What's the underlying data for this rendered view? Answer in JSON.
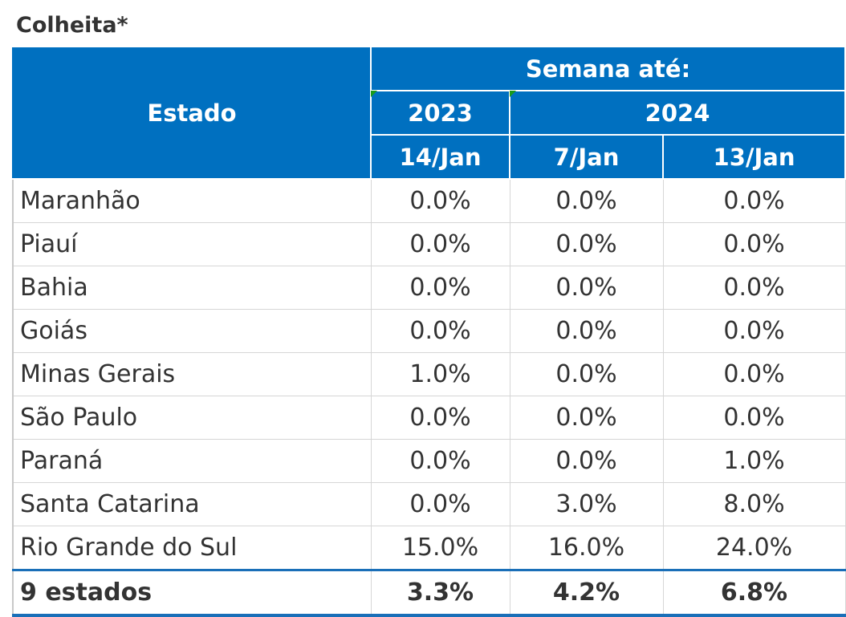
{
  "title": "Colheita*",
  "header": {
    "estado": "Estado",
    "group": "Semana até:",
    "years": [
      "2023",
      "2024"
    ],
    "dates": [
      "14/Jan",
      "7/Jan",
      "13/Jan"
    ]
  },
  "rows": [
    {
      "estado": "Maranhão",
      "values": [
        "0.0%",
        "0.0%",
        "0.0%"
      ]
    },
    {
      "estado": "Piauí",
      "values": [
        "0.0%",
        "0.0%",
        "0.0%"
      ]
    },
    {
      "estado": "Bahia",
      "values": [
        "0.0%",
        "0.0%",
        "0.0%"
      ]
    },
    {
      "estado": "Goiás",
      "values": [
        "0.0%",
        "0.0%",
        "0.0%"
      ]
    },
    {
      "estado": "Minas Gerais",
      "values": [
        "1.0%",
        "0.0%",
        "0.0%"
      ]
    },
    {
      "estado": "São Paulo",
      "values": [
        "0.0%",
        "0.0%",
        "0.0%"
      ]
    },
    {
      "estado": "Paraná",
      "values": [
        "0.0%",
        "0.0%",
        "1.0%"
      ]
    },
    {
      "estado": "Santa Catarina",
      "values": [
        "0.0%",
        "3.0%",
        "8.0%"
      ]
    },
    {
      "estado": "Rio Grande do Sul",
      "values": [
        "15.0%",
        "16.0%",
        "24.0%"
      ]
    }
  ],
  "total": {
    "estado": "9 estados",
    "values": [
      "3.3%",
      "4.2%",
      "6.8%"
    ]
  },
  "colors": {
    "header_bg": "#0070C0",
    "header_text": "#FFFFFF",
    "accent_line": "#1A6FB8"
  }
}
